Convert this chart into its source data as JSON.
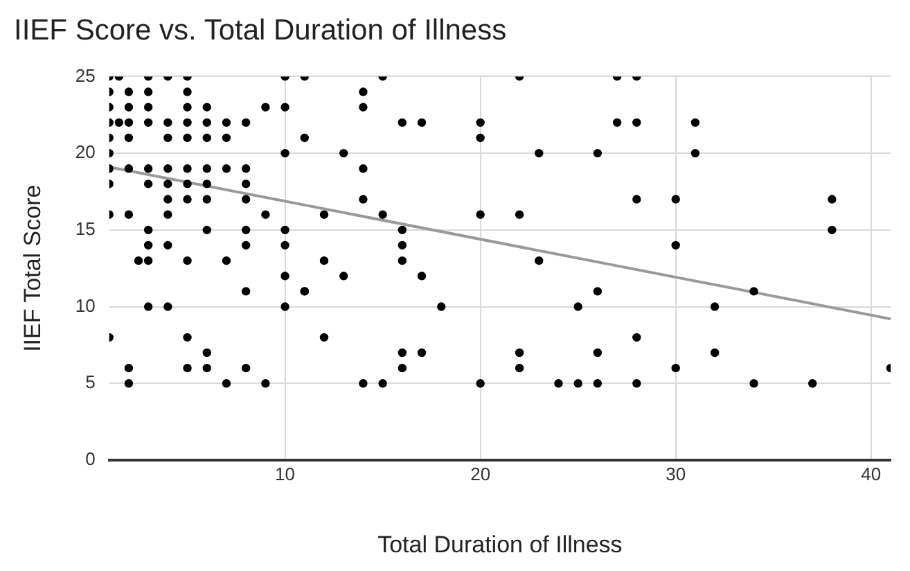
{
  "chart_data": {
    "type": "scatter",
    "title": "IIEF Score vs. Total Duration of Illness",
    "xlabel": "Total Duration of Illness",
    "ylabel": "IIEF Total Score",
    "xlim": [
      1,
      41
    ],
    "xticks": [
      10,
      20,
      30,
      40
    ],
    "ylim": [
      0,
      25
    ],
    "yticks": [
      0,
      5,
      10,
      15,
      20,
      25
    ],
    "grid": true,
    "legend": false,
    "marker": "circle",
    "series": [
      {
        "color": "#000000",
        "x": [
          1,
          1.5,
          3,
          4,
          5,
          10,
          1,
          2,
          3,
          5,
          1,
          2,
          3,
          5,
          6,
          9,
          10,
          1,
          1.5,
          2,
          3,
          4,
          5,
          6,
          7,
          8,
          1,
          2,
          4,
          5,
          6,
          7,
          11,
          1,
          10,
          1,
          2,
          3,
          4,
          5,
          6,
          7,
          8,
          1,
          3,
          4,
          5,
          6,
          8,
          4,
          5,
          6,
          8,
          1,
          2,
          4,
          9,
          3,
          6,
          8,
          10,
          3,
          4,
          8,
          10,
          2.5,
          3,
          5,
          7,
          10,
          8,
          11,
          3,
          4,
          10,
          1,
          5,
          6,
          2,
          5,
          6,
          8,
          2,
          7,
          9,
          11,
          15,
          22,
          14,
          14,
          16,
          17,
          20,
          20,
          13,
          23,
          26,
          14,
          14,
          12,
          15,
          20,
          22,
          16,
          16,
          12,
          16,
          23,
          13,
          17,
          11,
          26,
          18,
          25,
          12,
          16,
          17,
          22,
          26,
          16,
          22,
          14,
          15,
          20,
          24,
          25,
          26,
          27,
          28,
          27,
          28,
          31,
          31,
          28,
          30,
          38,
          38,
          30,
          34,
          32,
          28,
          32,
          30,
          41,
          28,
          34,
          37
        ],
        "values": [
          25,
          25,
          25,
          25,
          25,
          25,
          24,
          24,
          24,
          24,
          23,
          23,
          23,
          23,
          23,
          23,
          23,
          22,
          22,
          22,
          22,
          22,
          22,
          22,
          22,
          22,
          21,
          21,
          21,
          21,
          21,
          21,
          21,
          20,
          20,
          19,
          19,
          19,
          19,
          19,
          19,
          19,
          19,
          18,
          18,
          18,
          18,
          18,
          18,
          17,
          17,
          17,
          17,
          16,
          16,
          16,
          16,
          15,
          15,
          15,
          15,
          14,
          14,
          14,
          14,
          13,
          13,
          13,
          13,
          12,
          11,
          11,
          10,
          10,
          10,
          8,
          8,
          7,
          6,
          6,
          6,
          6,
          5,
          5,
          5,
          25,
          25,
          25,
          24,
          23,
          22,
          22,
          22,
          21,
          20,
          20,
          20,
          19,
          17,
          16,
          16,
          16,
          16,
          15,
          14,
          13,
          13,
          13,
          12,
          12,
          11,
          11,
          10,
          10,
          8,
          7,
          7,
          7,
          7,
          6,
          6,
          5,
          5,
          5,
          5,
          5,
          5,
          25,
          25,
          22,
          22,
          22,
          20,
          17,
          17,
          17,
          15,
          14,
          11,
          10,
          8,
          7,
          6,
          6,
          5,
          5,
          5
        ]
      },
      {
        "type": "line",
        "color": "#999999",
        "x": [
          1,
          41
        ],
        "values": [
          19.1,
          9.2
        ],
        "marker": "none"
      }
    ]
  }
}
